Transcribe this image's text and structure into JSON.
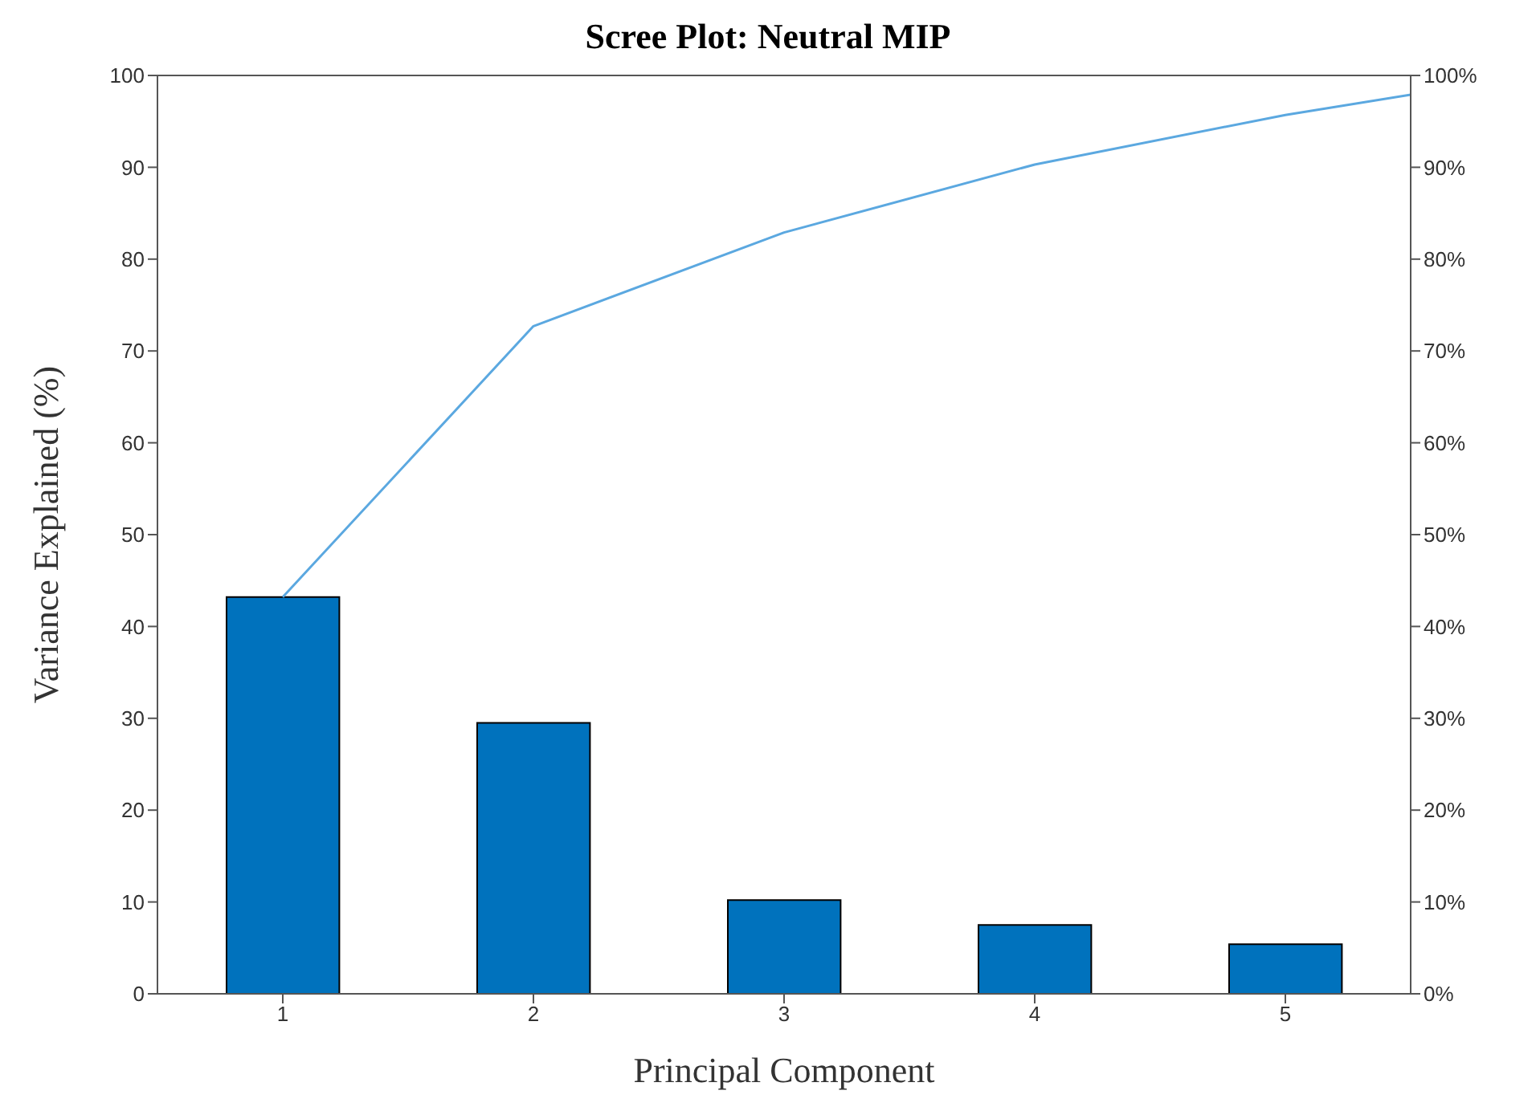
{
  "chart_data": {
    "type": "bar",
    "title": "Scree Plot: Neutral MIP",
    "xlabel": "Principal Component",
    "ylabel": "Variance Explained (%)",
    "x": [
      1,
      2,
      3,
      4,
      5
    ],
    "xlim": [
      0.5,
      5.5
    ],
    "xticks": [
      1,
      2,
      3,
      4,
      5
    ],
    "ylim": [
      0,
      100
    ],
    "yticks": [
      0,
      10,
      20,
      30,
      40,
      50,
      60,
      70,
      80,
      90,
      100
    ],
    "y2lim": [
      0,
      100
    ],
    "y2ticks": [
      {
        "value": 0,
        "label": "0%"
      },
      {
        "value": 10,
        "label": "10%"
      },
      {
        "value": 20,
        "label": "20%"
      },
      {
        "value": 30,
        "label": "30%"
      },
      {
        "value": 40,
        "label": "40%"
      },
      {
        "value": 50,
        "label": "50%"
      },
      {
        "value": 60,
        "label": "60%"
      },
      {
        "value": 70,
        "label": "70%"
      },
      {
        "value": 80,
        "label": "80%"
      },
      {
        "value": 90,
        "label": "90%"
      },
      {
        "value": 100,
        "label": "100%"
      }
    ],
    "series": [
      {
        "color": "#0072bd",
        "values": [
          43.2,
          29.5,
          10.2,
          7.5,
          5.4
        ]
      },
      {
        "type": "line",
        "axis": "y2",
        "color": "#5ba8e0",
        "x": [
          1,
          2,
          3,
          4,
          5,
          5.5
        ],
        "values": [
          43.2,
          72.7,
          82.9,
          90.3,
          95.7,
          97.9
        ]
      }
    ],
    "grid": false,
    "legend": false
  }
}
